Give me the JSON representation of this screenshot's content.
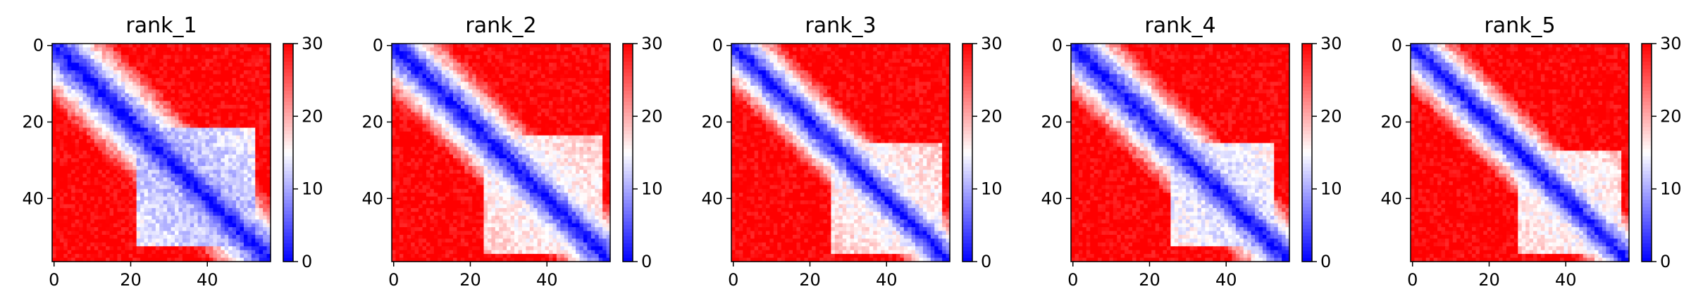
{
  "chart_data": [
    {
      "type": "heatmap",
      "title": "rank_1",
      "size": 57,
      "xticks": [
        0,
        20,
        40
      ],
      "yticks": [
        0,
        20,
        40
      ],
      "colorbar": {
        "min": 0,
        "max": 30,
        "ticks": [
          0,
          10,
          20,
          30
        ]
      },
      "cmap": [
        "#0000ff",
        "#ffffff",
        "#ff0000"
      ],
      "blocks": [
        {
          "range": [
            22,
            52
          ],
          "level": 10
        }
      ],
      "band_width": 5
    },
    {
      "type": "heatmap",
      "title": "rank_2",
      "size": 57,
      "xticks": [
        0,
        20,
        40
      ],
      "yticks": [
        0,
        20,
        40
      ],
      "colorbar": {
        "min": 0,
        "max": 30,
        "ticks": [
          0,
          10,
          20,
          30
        ]
      },
      "cmap": [
        "#0000ff",
        "#ffffff",
        "#ff0000"
      ],
      "blocks": [
        {
          "range": [
            24,
            54
          ],
          "level": 14
        }
      ],
      "band_width": 4.5
    },
    {
      "type": "heatmap",
      "title": "rank_3",
      "size": 57,
      "xticks": [
        0,
        20,
        40
      ],
      "yticks": [
        0,
        20,
        40
      ],
      "colorbar": {
        "min": 0,
        "max": 30,
        "ticks": [
          0,
          10,
          20,
          30
        ]
      },
      "cmap": [
        "#0000ff",
        "#ffffff",
        "#ff0000"
      ],
      "blocks": [
        {
          "range": [
            26,
            54
          ],
          "level": 14
        }
      ],
      "band_width": 4
    },
    {
      "type": "heatmap",
      "title": "rank_4",
      "size": 57,
      "xticks": [
        0,
        20,
        40
      ],
      "yticks": [
        0,
        20,
        40
      ],
      "colorbar": {
        "min": 0,
        "max": 30,
        "ticks": [
          0,
          10,
          20,
          30
        ]
      },
      "cmap": [
        "#0000ff",
        "#ffffff",
        "#ff0000"
      ],
      "blocks": [
        {
          "range": [
            26,
            52
          ],
          "level": 12
        }
      ],
      "band_width": 4.5
    },
    {
      "type": "heatmap",
      "title": "rank_5",
      "size": 57,
      "xticks": [
        0,
        20,
        40
      ],
      "yticks": [
        0,
        20,
        40
      ],
      "colorbar": {
        "min": 0,
        "max": 30,
        "ticks": [
          0,
          10,
          20,
          30
        ]
      },
      "cmap": [
        "#0000ff",
        "#ffffff",
        "#ff0000"
      ],
      "blocks": [
        {
          "range": [
            28,
            54
          ],
          "level": 14
        }
      ],
      "band_width": 4
    }
  ]
}
